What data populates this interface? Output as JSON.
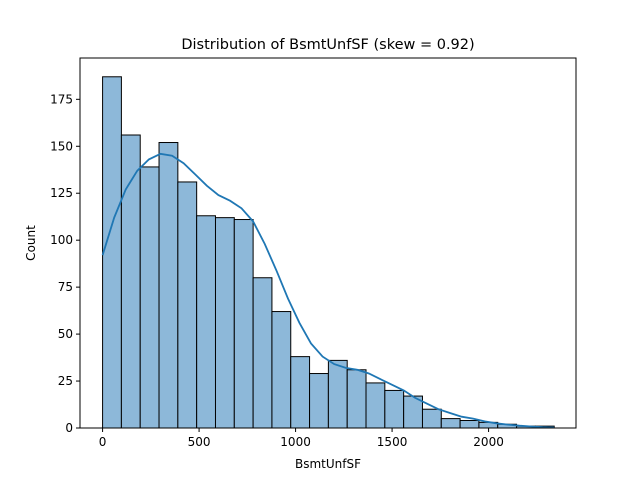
{
  "chart_data": {
    "type": "bar",
    "title": "Distribution of BsmtUnfSF (skew = 0.92)",
    "xlabel": "BsmtUnfSF",
    "ylabel": "Count",
    "xlim": [
      -117,
      2453
    ],
    "ylim": [
      0,
      197
    ],
    "xticks": [
      0,
      500,
      1000,
      1500,
      2000
    ],
    "yticks": [
      0,
      25,
      50,
      75,
      100,
      125,
      150,
      175
    ],
    "grid": false,
    "bin_edges": [
      0,
      97.5,
      195,
      292.5,
      390,
      487.5,
      585,
      682.5,
      780,
      877.5,
      975,
      1072.5,
      1170,
      1267.5,
      1365,
      1462.5,
      1560,
      1657.5,
      1755,
      1852.5,
      1950,
      2047.5,
      2145,
      2242.5,
      2340
    ],
    "counts": [
      187,
      156,
      139,
      152,
      131,
      113,
      112,
      111,
      80,
      62,
      38,
      29,
      36,
      31,
      24,
      20,
      17,
      10,
      5,
      4,
      3,
      2,
      1,
      1
    ],
    "kde": {
      "x": [
        0,
        60,
        120,
        180,
        240,
        300,
        360,
        420,
        480,
        540,
        600,
        660,
        720,
        780,
        840,
        900,
        960,
        1020,
        1080,
        1140,
        1200,
        1260,
        1320,
        1380,
        1440,
        1500,
        1560,
        1620,
        1680,
        1740,
        1800,
        1860,
        1920,
        1980,
        2040,
        2100,
        2160,
        2220,
        2280,
        2340
      ],
      "y": [
        92,
        112,
        127,
        137,
        143,
        146,
        145,
        141,
        135,
        129,
        124,
        121,
        117,
        110,
        98,
        84,
        69,
        56,
        45,
        38,
        34,
        32,
        31,
        29,
        26,
        23,
        20,
        16,
        13,
        10,
        8,
        6,
        5,
        3.5,
        2.5,
        1.8,
        1.2,
        0.8,
        0.4,
        0.2
      ]
    },
    "bar_color": "#8db8d9",
    "bar_edge_color": "#000000",
    "kde_color": "#1f77b4"
  }
}
